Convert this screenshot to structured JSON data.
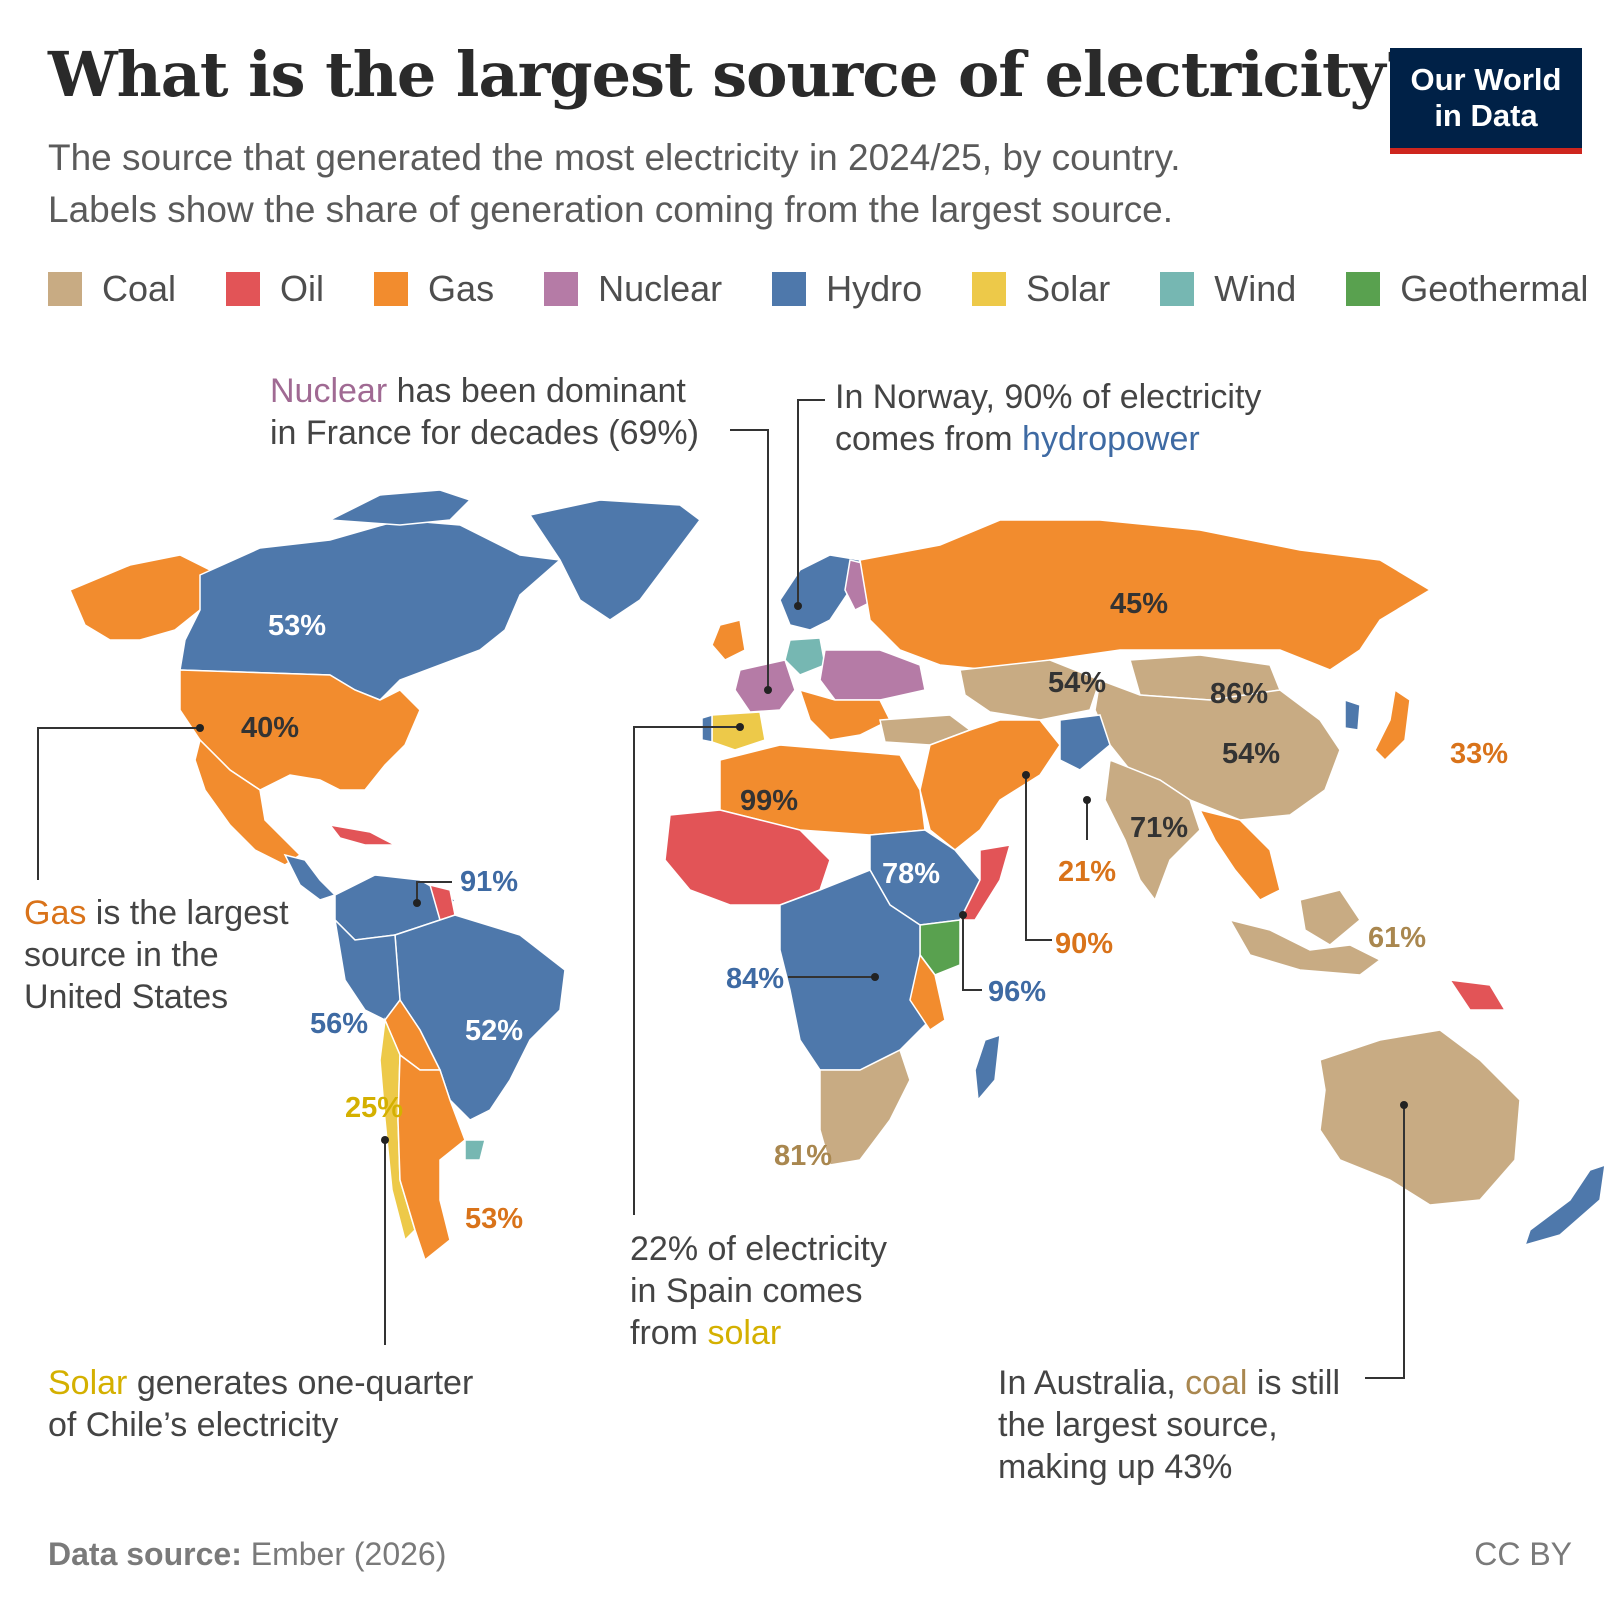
{
  "header": {
    "title": "What is the largest source of electricity?",
    "subtitle_line1": "The source that generated the most electricity in 2024/25, by country.",
    "subtitle_line2": "Labels show the share of generation coming from the largest source.",
    "logo_line1": "Our World",
    "logo_line2": "in Data"
  },
  "legend": [
    {
      "label": "Coal",
      "color": "#c8ab83"
    },
    {
      "label": "Oil",
      "color": "#e25457"
    },
    {
      "label": "Gas",
      "color": "#f28c2e"
    },
    {
      "label": "Nuclear",
      "color": "#b57ba6"
    },
    {
      "label": "Hydro",
      "color": "#4e78ab"
    },
    {
      "label": "Solar",
      "color": "#edc949"
    },
    {
      "label": "Wind",
      "color": "#76b7b2"
    },
    {
      "label": "Geothermal",
      "color": "#59a14f"
    }
  ],
  "labels": {
    "canada": "53%",
    "usa": "40%",
    "venezuela": "91%",
    "colombia_peru": "56%",
    "brazil": "52%",
    "chile": "25%",
    "argentina": "53%",
    "russia": "45%",
    "kazakhstan": "54%",
    "mongolia": "86%",
    "china": "54%",
    "japan": "33%",
    "india": "71%",
    "pakistan": "21%",
    "iran": "90%",
    "algeria": "99%",
    "ethiopia": "78%",
    "drc": "84%",
    "kenya": "96%",
    "south_africa": "81%",
    "indonesia": "61%"
  },
  "annotations": {
    "france": {
      "highlight": "Nuclear",
      "rest1": " has been dominant",
      "line2": "in France for decades (69%)"
    },
    "norway": {
      "line1": "In Norway, 90% of electricity",
      "line2a": "comes from ",
      "highlight": "hydropower"
    },
    "usa": {
      "highlight": "Gas",
      "rest1": " is the largest",
      "line2": "source in the",
      "line3": "United States"
    },
    "chile": {
      "highlight": "Solar",
      "rest1": " generates one-quarter",
      "line2": "of Chile’s electricity"
    },
    "spain": {
      "line1": "22% of electricity",
      "line2": "in Spain comes",
      "line3a": "from ",
      "highlight": "solar"
    },
    "australia": {
      "line1a": "In Australia, ",
      "highlight": "coal",
      "line1b": " is still",
      "line2": "the largest source,",
      "line3": "making up 43%"
    }
  },
  "footer": {
    "source_label": "Data source:",
    "source_value": " Ember (2026)",
    "license": "CC BY"
  }
}
